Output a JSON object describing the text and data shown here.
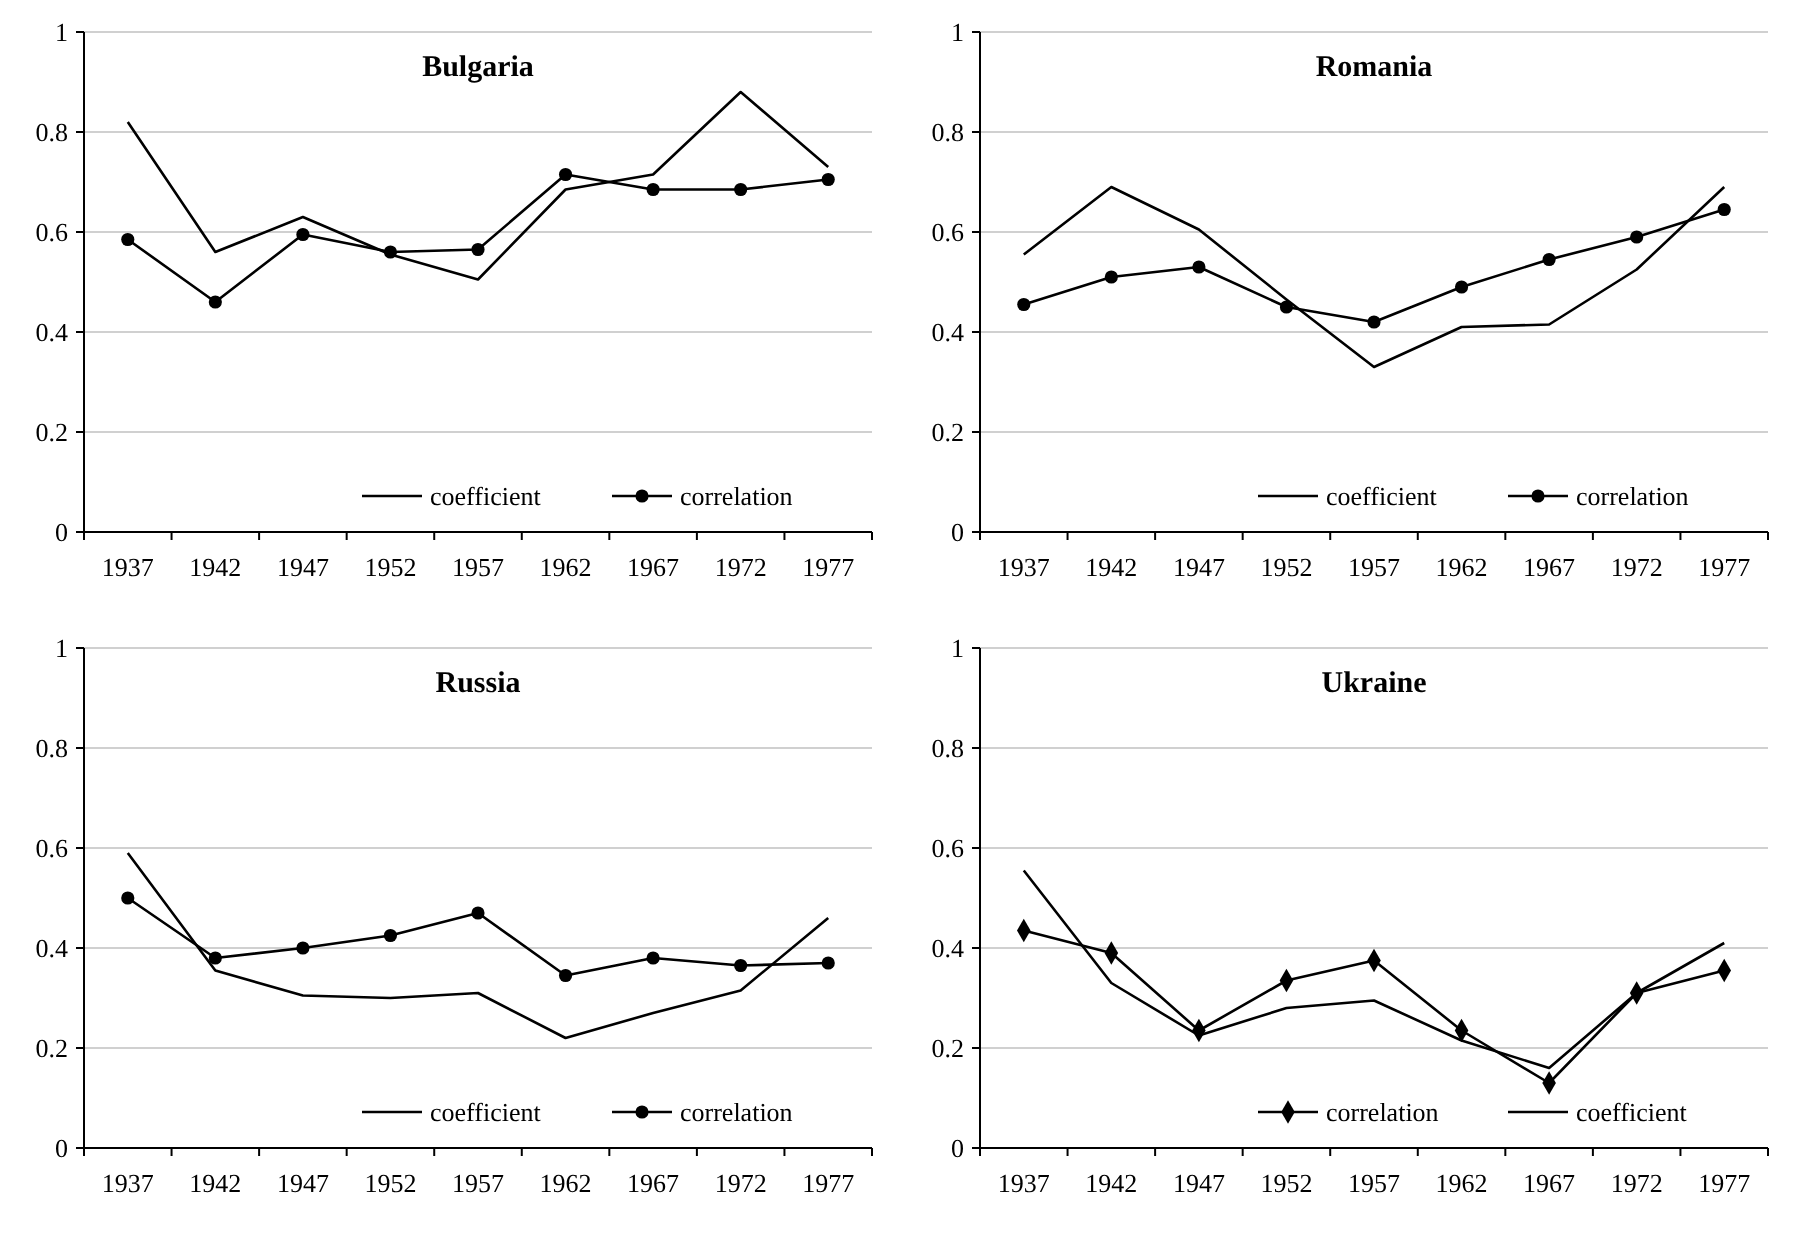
{
  "chart_data": [
    {
      "type": "line",
      "title": "Bulgaria",
      "categories": [
        "1937",
        "1942",
        "1947",
        "1952",
        "1957",
        "1962",
        "1967",
        "1972",
        "1977"
      ],
      "ylim": [
        0,
        1
      ],
      "yticks": [
        0,
        0.2,
        0.4,
        0.6,
        0.8,
        1
      ],
      "grid": "y",
      "legend": "bottom right",
      "series": [
        {
          "name": "coefficient",
          "color": "#000000",
          "marker": "none",
          "values": [
            0.82,
            0.56,
            0.63,
            0.555,
            0.505,
            0.685,
            0.715,
            0.88,
            0.73
          ]
        },
        {
          "name": "correlation",
          "color": "#000000",
          "marker": "circle",
          "values": [
            0.585,
            0.46,
            0.595,
            0.56,
            0.565,
            0.715,
            0.685,
            0.685,
            0.705
          ]
        }
      ]
    },
    {
      "type": "line",
      "title": "Romania",
      "categories": [
        "1937",
        "1942",
        "1947",
        "1952",
        "1957",
        "1962",
        "1967",
        "1972",
        "1977"
      ],
      "ylim": [
        0,
        1
      ],
      "yticks": [
        0,
        0.2,
        0.4,
        0.6,
        0.8,
        1
      ],
      "grid": "y",
      "legend": "bottom right",
      "series": [
        {
          "name": "coefficient",
          "color": "#000000",
          "marker": "none",
          "values": [
            0.555,
            0.69,
            0.605,
            0.465,
            0.33,
            0.41,
            0.415,
            0.525,
            0.69
          ]
        },
        {
          "name": "correlation",
          "color": "#000000",
          "marker": "circle",
          "values": [
            0.455,
            0.51,
            0.53,
            0.45,
            0.42,
            0.49,
            0.545,
            0.59,
            0.645
          ]
        }
      ]
    },
    {
      "type": "line",
      "title": "Russia",
      "categories": [
        "1937",
        "1942",
        "1947",
        "1952",
        "1957",
        "1962",
        "1967",
        "1972",
        "1977"
      ],
      "ylim": [
        0,
        1
      ],
      "yticks": [
        0,
        0.2,
        0.4,
        0.6,
        0.8,
        1
      ],
      "grid": "y",
      "legend": "bottom right",
      "series": [
        {
          "name": "coefficient",
          "color": "#000000",
          "marker": "none",
          "values": [
            0.59,
            0.355,
            0.305,
            0.3,
            0.31,
            0.22,
            0.27,
            0.315,
            0.46
          ]
        },
        {
          "name": "correlation",
          "color": "#000000",
          "marker": "circle",
          "values": [
            0.5,
            0.38,
            0.4,
            0.425,
            0.47,
            0.345,
            0.38,
            0.365,
            0.37
          ]
        }
      ]
    },
    {
      "type": "line",
      "title": "Ukraine",
      "categories": [
        "1937",
        "1942",
        "1947",
        "1952",
        "1957",
        "1962",
        "1967",
        "1972",
        "1977"
      ],
      "ylim": [
        0,
        1
      ],
      "yticks": [
        0,
        0.2,
        0.4,
        0.6,
        0.8,
        1
      ],
      "grid": "y",
      "legend": "bottom right",
      "series": [
        {
          "name": "correlation",
          "color": "#000000",
          "marker": "diamond",
          "values": [
            0.435,
            0.39,
            0.235,
            0.335,
            0.375,
            0.235,
            0.13,
            0.31,
            0.355
          ]
        },
        {
          "name": "coefficient",
          "color": "#000000",
          "marker": "none",
          "values": [
            0.555,
            0.33,
            0.225,
            0.28,
            0.295,
            0.215,
            0.16,
            0.31,
            0.41
          ]
        }
      ]
    }
  ]
}
